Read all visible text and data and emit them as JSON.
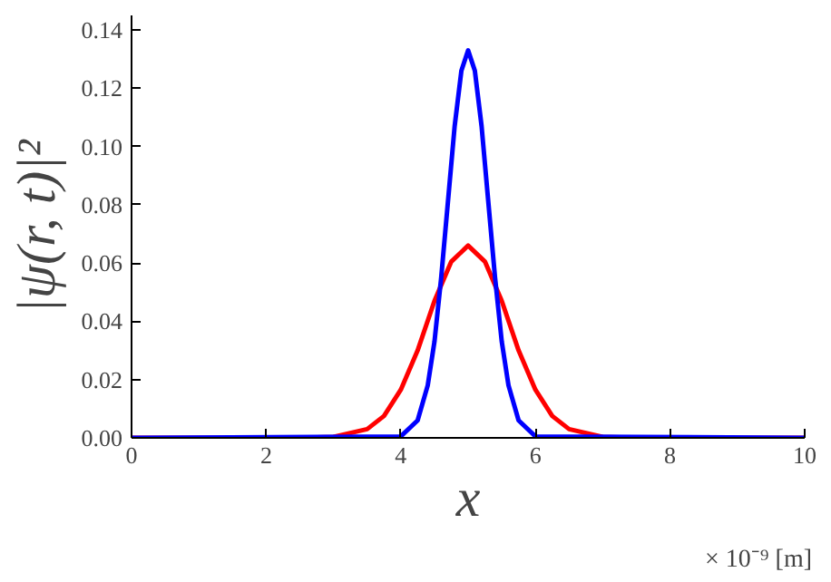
{
  "chart_data": {
    "type": "line",
    "xlabel": "x",
    "ylabel": "|ψ(r, t)|²",
    "annotations": [
      "× 10⁻⁹ [m]"
    ],
    "xlim": [
      0,
      10
    ],
    "ylim": [
      0,
      0.145
    ],
    "xticks": [
      0,
      2,
      4,
      6,
      8,
      10
    ],
    "yticks": [
      {
        "value": 0,
        "label": "0.00"
      },
      {
        "value": 0.02,
        "label": "0.02"
      },
      {
        "value": 0.04,
        "label": "0.04"
      },
      {
        "value": 0.06,
        "label": "0.06"
      },
      {
        "value": 0.08,
        "label": "0.08"
      },
      {
        "value": 0.1,
        "label": "0.10"
      },
      {
        "value": 0.12,
        "label": "0.12"
      },
      {
        "value": 0.14,
        "label": "0.14"
      }
    ],
    "grid": false,
    "marker": "none",
    "line_style": "solid",
    "series": [
      {
        "color": "#ff0000",
        "x": [
          0,
          2.5,
          3,
          3.5,
          3.75,
          4,
          4.25,
          4.5,
          4.75,
          5,
          5.25,
          5.5,
          5.75,
          6,
          6.25,
          6.5,
          7,
          7.5,
          10
        ],
        "values": [
          0,
          0,
          0.0003,
          0.003,
          0.0075,
          0.0165,
          0.03,
          0.047,
          0.0605,
          0.066,
          0.0605,
          0.047,
          0.03,
          0.0165,
          0.0075,
          0.003,
          0.0003,
          0,
          0
        ]
      },
      {
        "color": "#0000ff",
        "x": [
          0,
          4,
          4.25,
          4.4,
          4.5,
          4.6,
          4.7,
          4.8,
          4.9,
          5,
          5.1,
          5.2,
          5.3,
          5.4,
          5.5,
          5.6,
          5.75,
          6,
          10
        ],
        "values": [
          0,
          0.0005,
          0.006,
          0.018,
          0.033,
          0.055,
          0.081,
          0.107,
          0.126,
          0.133,
          0.126,
          0.107,
          0.081,
          0.055,
          0.033,
          0.018,
          0.006,
          0.0005,
          0
        ]
      }
    ]
  }
}
